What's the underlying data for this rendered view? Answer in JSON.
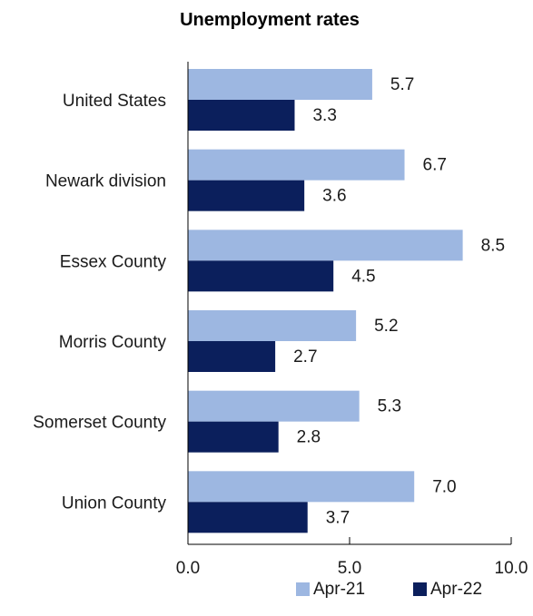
{
  "chart_data": {
    "type": "bar",
    "orientation": "horizontal",
    "title": "Unemployment rates",
    "xlabel": "",
    "ylabel": "",
    "categories": [
      "United States",
      "Newark division",
      "Essex County",
      "Morris County",
      "Somerset County",
      "Union County"
    ],
    "series": [
      {
        "name": "Apr-21",
        "color": "#9db7e1",
        "values": [
          5.7,
          6.7,
          8.5,
          5.2,
          5.3,
          7.0
        ],
        "labels": [
          "5.7",
          "6.7",
          "8.5",
          "5.2",
          "5.3",
          "7.0"
        ]
      },
      {
        "name": "Apr-22",
        "color": "#0b1f5c",
        "values": [
          3.3,
          3.6,
          4.5,
          2.7,
          2.8,
          3.7
        ],
        "labels": [
          "3.3",
          "3.6",
          "4.5",
          "2.7",
          "2.8",
          "3.7"
        ]
      }
    ],
    "xlim": [
      0,
      10
    ],
    "xticks": [
      0,
      5,
      10
    ],
    "xtick_labels": [
      "0.0",
      "5.0",
      "10.0"
    ],
    "grid": false,
    "legend": "bottom-right"
  }
}
